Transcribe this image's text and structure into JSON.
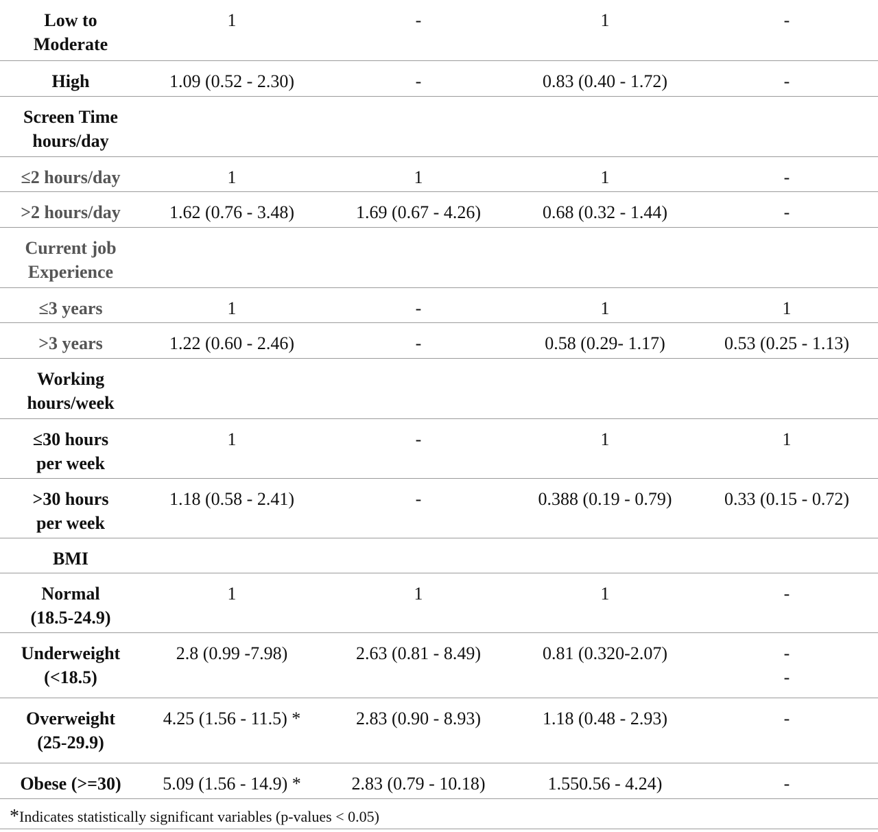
{
  "rows": [
    {
      "label": [
        "Low to",
        "Moderate"
      ],
      "values": [
        "1",
        "-",
        "1",
        "-"
      ],
      "h": 88,
      "grey": false
    },
    {
      "label": [
        "High"
      ],
      "values": [
        "1.09 (0.52 - 2.30)",
        "-",
        "0.83 (0.40 - 1.72)",
        "-"
      ],
      "h": 52,
      "grey": false
    },
    {
      "label": [
        "Screen Time",
        "hours/day"
      ],
      "values": [
        "",
        "",
        "",
        ""
      ],
      "h": 88,
      "grey": false
    },
    {
      "label": [
        "≤2 hours/day"
      ],
      "values": [
        "1",
        "1",
        "1",
        "-"
      ],
      "h": 51,
      "grey": true
    },
    {
      "label": [
        ">2 hours/day"
      ],
      "values": [
        "1.62 (0.76 - 3.48)",
        "1.69 (0.67 - 4.26)",
        "0.68 (0.32 - 1.44)",
        "-"
      ],
      "h": 52,
      "grey": true
    },
    {
      "label": [
        "Current job",
        "Experience"
      ],
      "values": [
        "",
        "",
        "",
        ""
      ],
      "h": 88,
      "grey": true
    },
    {
      "label": [
        "≤3 years"
      ],
      "values": [
        "1",
        "-",
        "1",
        "1"
      ],
      "h": 51,
      "grey": true
    },
    {
      "label": [
        ">3 years"
      ],
      "values": [
        "1.22 (0.60 - 2.46)",
        "-",
        "0.58 (0.29- 1.17)",
        "0.53 (0.25 - 1.13)"
      ],
      "h": 52,
      "grey": true
    },
    {
      "label": [
        "Working",
        "hours/week"
      ],
      "values": [
        "",
        "",
        "",
        ""
      ],
      "h": 88,
      "grey": false
    },
    {
      "label": [
        "≤30 hours",
        "per week"
      ],
      "values": [
        "1",
        "-",
        "1",
        "1"
      ],
      "h": 87,
      "grey": false
    },
    {
      "label": [
        ">30 hours",
        "per week"
      ],
      "values": [
        "1.18 (0.58 - 2.41)",
        "-",
        "0.388 (0.19 - 0.79)",
        "0.33 (0.15 - 0.72)"
      ],
      "h": 87,
      "grey": false
    },
    {
      "label": [
        "BMI"
      ],
      "values": [
        "",
        "",
        "",
        ""
      ],
      "h": 51,
      "grey": false
    },
    {
      "label": [
        "Normal",
        "(18.5-24.9)"
      ],
      "values": [
        "1",
        "1",
        "1",
        "-"
      ],
      "h": 87,
      "grey": false
    },
    {
      "label": [
        "Underweight",
        "(<18.5)"
      ],
      "values": [
        "2.8 (0.99 -7.98)",
        "2.63 (0.81 - 8.49)",
        "0.81 (0.320-2.07)",
        "-\n-"
      ],
      "h": 95,
      "grey": false
    },
    {
      "label": [
        "Overweight",
        "(25-29.9)"
      ],
      "values": [
        "4.25 (1.56 - 11.5) *",
        "2.83 (0.90 - 8.93)",
        "1.18 (0.48 - 2.93)",
        "-"
      ],
      "h": 95,
      "grey": false
    },
    {
      "label": [
        "Obese (>=30)"
      ],
      "values": [
        "5.09 (1.56 - 14.9) *",
        "2.83 (0.79 - 10.18)",
        "1.550.56 - 4.24)",
        "-"
      ],
      "h": 52,
      "grey": false
    }
  ],
  "footnote": {
    "star": "*",
    "text": "Indicates statistically significant variables (p-values < 0.05)"
  }
}
